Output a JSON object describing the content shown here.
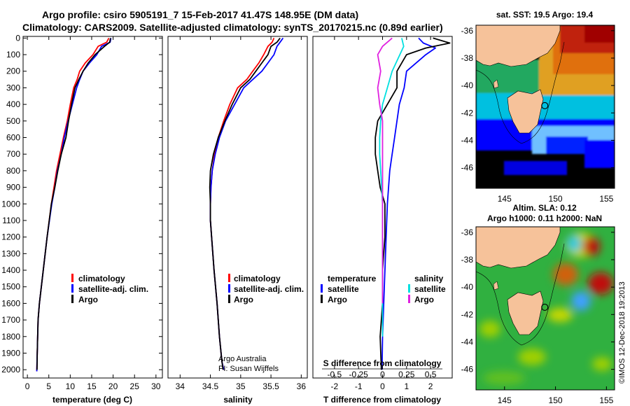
{
  "header": {
    "line1": "Argo profile: csiro 5905191_7 15-Feb-2017 41.47S 148.95E (DM data)",
    "line2": "Climatology: CARS2009. Satellite-adjusted climatology: synTS_20170215.nc (0.89d earlier)"
  },
  "colors": {
    "climatology": "#ff0000",
    "satellite": "#0000ff",
    "argo": "#000000",
    "sat_salinity": "#00e0e0",
    "argo_salinity": "#e020e0"
  },
  "chart_data": [
    {
      "type": "line",
      "id": "temperature",
      "xlabel": "temperature (deg C)",
      "ylabel": "",
      "xlim": [
        -1,
        31.5
      ],
      "ylim": [
        2050,
        -10
      ],
      "xticks": [
        0,
        5,
        10,
        15,
        20,
        25,
        30
      ],
      "yticks": [
        0,
        100,
        200,
        300,
        400,
        500,
        600,
        700,
        800,
        900,
        1000,
        1100,
        1200,
        1300,
        1400,
        1500,
        1600,
        1700,
        1800,
        1900,
        2000
      ],
      "legend": {
        "position": "lower-right",
        "entries": [
          "climatology",
          "satellite-adj. clim.",
          "Argo"
        ]
      },
      "series": [
        {
          "name": "climatology",
          "color": "#ff0000",
          "x": [
            19.0,
            18.5,
            16.5,
            15.3,
            13.5,
            12.2,
            11.6,
            10.8,
            10.0,
            9.3,
            8.4,
            7.6,
            6.8,
            6.2,
            5.6,
            4.6,
            3.7,
            2.8,
            2.5,
            2.4,
            2.3,
            2.2,
            2.2
          ],
          "y": [
            0,
            25,
            50,
            100,
            150,
            200,
            250,
            300,
            400,
            500,
            600,
            700,
            800,
            900,
            1000,
            1200,
            1400,
            1600,
            1700,
            1800,
            1900,
            2000,
            2010
          ]
        },
        {
          "name": "satellite-adj. clim.",
          "color": "#0000ff",
          "x": [
            19.5,
            19.3,
            17.3,
            16.2,
            14.5,
            13.0,
            12.2,
            11.5,
            10.5,
            9.5,
            8.6,
            7.9,
            7.0,
            6.4,
            5.7,
            4.6,
            3.7,
            2.8,
            2.5,
            2.4,
            2.3,
            2.2,
            2.2
          ],
          "y": [
            0,
            25,
            50,
            100,
            150,
            200,
            250,
            300,
            400,
            500,
            600,
            700,
            800,
            900,
            1000,
            1200,
            1400,
            1600,
            1700,
            1800,
            1900,
            2000,
            2010
          ]
        },
        {
          "name": "Argo",
          "color": "#000000",
          "x": [
            19.4,
            19.2,
            18.0,
            15.8,
            14.2,
            13.0,
            12.0,
            11.1,
            10.3,
            9.6,
            9.0,
            7.9,
            7.1,
            6.4,
            5.6,
            4.6,
            3.7,
            2.8,
            2.5,
            2.4,
            2.3,
            2.25
          ],
          "y": [
            0,
            25,
            50,
            100,
            150,
            200,
            250,
            300,
            400,
            500,
            600,
            700,
            800,
            900,
            1000,
            1200,
            1400,
            1600,
            1700,
            1800,
            1900,
            2000
          ]
        }
      ]
    },
    {
      "type": "line",
      "id": "salinity",
      "xlabel": "salinity",
      "xlim": [
        33.8,
        36.1
      ],
      "ylim": [
        2050,
        -10
      ],
      "xticks": [
        34,
        34.5,
        35,
        35.5,
        36
      ],
      "legend": {
        "position": "lower-right",
        "entries": [
          "climatology",
          "satellite-adj. clim.",
          "Argo"
        ]
      },
      "annotation": [
        "Argo Australia",
        "PI: Susan Wijffels"
      ],
      "series": [
        {
          "name": "climatology",
          "color": "#ff0000",
          "x": [
            35.55,
            35.52,
            35.45,
            35.38,
            35.3,
            35.2,
            35.1,
            34.95,
            34.82,
            34.72,
            34.63,
            34.57,
            34.53,
            34.51,
            34.5,
            34.5,
            34.52,
            34.56,
            34.61,
            34.65,
            34.69,
            34.72
          ],
          "y": [
            0,
            25,
            50,
            100,
            150,
            200,
            250,
            300,
            400,
            500,
            600,
            700,
            800,
            900,
            1000,
            1100,
            1200,
            1400,
            1600,
            1800,
            1950,
            2000
          ]
        },
        {
          "name": "satellite-adj. clim.",
          "color": "#0000ff",
          "x": [
            35.7,
            35.65,
            35.6,
            35.55,
            35.45,
            35.35,
            35.2,
            35.05,
            34.9,
            34.75,
            34.65,
            34.58,
            34.53,
            34.51,
            34.5,
            34.5,
            34.52,
            34.56,
            34.61,
            34.65,
            34.69,
            34.72
          ],
          "y": [
            0,
            25,
            50,
            100,
            150,
            200,
            250,
            300,
            400,
            500,
            600,
            700,
            800,
            900,
            1000,
            1100,
            1200,
            1400,
            1600,
            1800,
            1950,
            2000
          ]
        },
        {
          "name": "Argo",
          "color": "#000000",
          "x": [
            35.65,
            35.6,
            35.5,
            35.45,
            35.35,
            35.25,
            35.15,
            35.0,
            34.86,
            34.74,
            34.63,
            34.55,
            34.5,
            34.49,
            34.5,
            34.5,
            34.52,
            34.56,
            34.61,
            34.65,
            34.69,
            34.71
          ],
          "y": [
            0,
            25,
            50,
            100,
            150,
            200,
            250,
            300,
            400,
            500,
            600,
            700,
            800,
            900,
            1000,
            1100,
            1200,
            1400,
            1600,
            1800,
            1950,
            2000
          ]
        }
      ]
    },
    {
      "type": "line",
      "id": "difference",
      "xlabel": "T difference from climatology",
      "xlabel2": "S difference from climatology",
      "xlim": [
        -2.9,
        2.9
      ],
      "ylim": [
        2050,
        -10
      ],
      "xticks": [
        -2,
        -1,
        0,
        1,
        2
      ],
      "xticks_s": [
        "-0.5",
        "-0.25",
        "0",
        "0.25",
        "0.5"
      ],
      "legend_t": {
        "title": "temperature",
        "entries": [
          "satellite",
          "Argo"
        ]
      },
      "legend_s": {
        "title": "salinity",
        "entries": [
          "satellite",
          "Argo"
        ]
      },
      "series": [
        {
          "name": "T satellite",
          "color": "#0000ff",
          "x": [
            1.5,
            1.7,
            2.2,
            1.8,
            1.4,
            1.0,
            0.9,
            0.7,
            0.6,
            0.5,
            0.4,
            0.3,
            0.25,
            0.2,
            0.15,
            0.1,
            0.05,
            0.0,
            -0.02
          ],
          "y": [
            0,
            30,
            60,
            100,
            150,
            200,
            300,
            400,
            500,
            600,
            700,
            800,
            900,
            1000,
            1200,
            1400,
            1600,
            1800,
            2000
          ]
        },
        {
          "name": "T Argo",
          "color": "#000000",
          "x": [
            2.1,
            2.8,
            1.8,
            1.0,
            0.8,
            0.6,
            0.6,
            0.2,
            -0.2,
            -0.3,
            -0.3,
            -0.2,
            -0.1,
            0.1,
            0.1,
            0.0,
            0.0,
            -0.1,
            -0.05
          ],
          "y": [
            0,
            30,
            60,
            100,
            150,
            200,
            300,
            400,
            500,
            600,
            700,
            800,
            900,
            1000,
            1200,
            1400,
            1600,
            1800,
            2000
          ]
        },
        {
          "name": "S satellite",
          "color": "#00e0e0",
          "x": [
            0.2,
            0.22,
            0.18,
            0.1,
            0.05,
            0.0,
            -0.02,
            -0.03,
            -0.03,
            -0.02,
            -0.01,
            0.0,
            0.0,
            0.0,
            0.0,
            0.0
          ],
          "y": [
            0,
            50,
            100,
            200,
            300,
            400,
            500,
            600,
            700,
            800,
            900,
            1000,
            1200,
            1400,
            1600,
            1800
          ]
        },
        {
          "name": "S Argo",
          "color": "#e020e0",
          "x": [
            0.1,
            0.0,
            -0.05,
            -0.02,
            -0.05,
            -0.03,
            0.0,
            0.0,
            0.0,
            0.0,
            0.0,
            0.0,
            0.0,
            0.0,
            0.0
          ],
          "y": [
            0,
            50,
            100,
            200,
            300,
            400,
            500,
            600,
            700,
            800,
            900,
            1000,
            1200,
            1400,
            1600
          ]
        }
      ]
    },
    {
      "type": "heatmap",
      "id": "sst-map",
      "title": "sat. SST: 19.5  Argo: 19.4",
      "xlim": [
        142.2,
        155.8
      ],
      "ylim": [
        -47.5,
        -35.6
      ],
      "xticks": [
        145,
        150,
        155
      ],
      "yticks": [
        -36,
        -38,
        -40,
        -42,
        -44,
        -46
      ],
      "argo_location": [
        148.95,
        -41.47
      ]
    },
    {
      "type": "heatmap",
      "id": "sla-map",
      "title": "Altim. SLA: 0.12",
      "subtitle": "Argo h1000: 0.11  h2000: NaN",
      "xlim": [
        142.2,
        155.8
      ],
      "ylim": [
        -47.5,
        -35.6
      ],
      "xticks": [
        145,
        150,
        155
      ],
      "yticks": [
        -36,
        -38,
        -40,
        -42,
        -44,
        -46
      ],
      "argo_location": [
        148.95,
        -41.47
      ]
    }
  ],
  "credit": "©IMOS 12-Dec-2018 19:2013"
}
